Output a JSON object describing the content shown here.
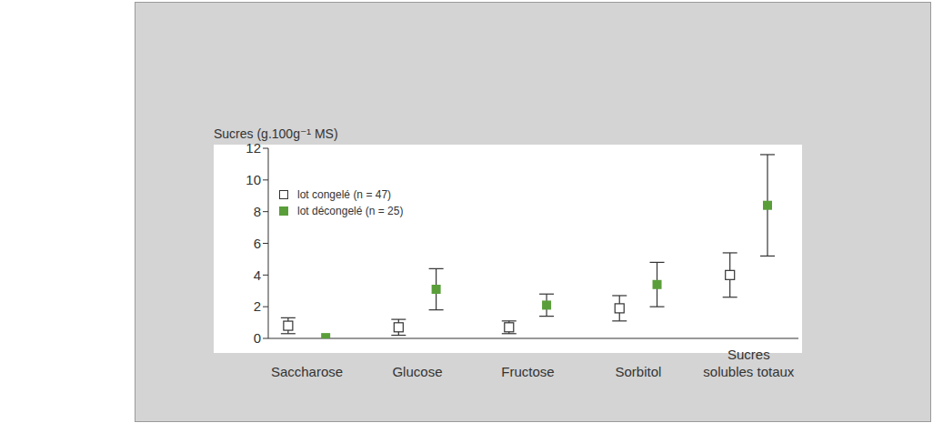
{
  "chart_data": {
    "type": "scatter",
    "y_label": "Sucres (g.100g⁻¹ MS)",
    "categories": [
      "Saccharose",
      "Glucose",
      "Fructose",
      "Sorbitol",
      "Sucres solubles totaux"
    ],
    "series": [
      {
        "name": "lot congelé (n = 47)",
        "color": "#333333",
        "marker": "open_square",
        "values": [
          0.8,
          0.7,
          0.7,
          1.9,
          4.0
        ],
        "errors": [
          0.5,
          0.5,
          0.4,
          0.8,
          1.4
        ]
      },
      {
        "name": "lot décongelé (n = 25)",
        "color": "#5a9e3a",
        "marker": "square",
        "values": [
          0.05,
          3.1,
          2.1,
          3.4,
          8.4
        ],
        "errors": [
          0,
          1.3,
          0.7,
          1.4,
          3.2
        ]
      }
    ],
    "ylim": [
      0,
      12
    ],
    "yticks": [
      0,
      2,
      4,
      6,
      8,
      10,
      12
    ],
    "grid": false,
    "legend": "upper left"
  }
}
